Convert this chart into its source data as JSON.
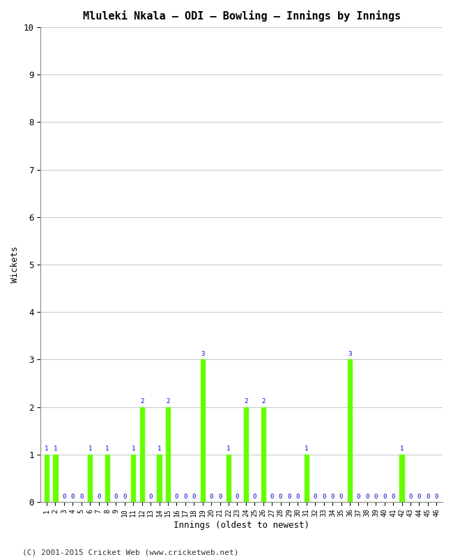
{
  "title": "Mluleki Nkala – ODI – Bowling – Innings by Innings",
  "xlabel": "Innings (oldest to newest)",
  "ylabel": "Wickets",
  "ylim": [
    0,
    10
  ],
  "yticks": [
    0,
    1,
    2,
    3,
    4,
    5,
    6,
    7,
    8,
    9,
    10
  ],
  "background_color": "#ffffff",
  "bar_color": "#66ff00",
  "label_color": "#0000cc",
  "footer": "(C) 2001-2015 Cricket Web (www.cricketweb.net)",
  "innings": [
    1,
    2,
    3,
    4,
    5,
    6,
    7,
    8,
    9,
    10,
    11,
    12,
    13,
    14,
    15,
    16,
    17,
    18,
    19,
    20,
    21,
    22,
    23,
    24,
    25,
    26,
    27,
    28,
    29,
    30,
    31,
    32,
    33,
    34,
    35,
    36,
    37,
    38,
    39,
    40,
    41,
    42,
    43,
    44,
    45,
    46
  ],
  "wickets": [
    1,
    1,
    0,
    0,
    0,
    1,
    0,
    1,
    0,
    0,
    1,
    2,
    0,
    1,
    2,
    0,
    0,
    0,
    3,
    0,
    0,
    1,
    0,
    2,
    0,
    2,
    0,
    0,
    0,
    0,
    1,
    0,
    0,
    0,
    0,
    3,
    0,
    0,
    0,
    0,
    0,
    1,
    0,
    0,
    0,
    0
  ]
}
